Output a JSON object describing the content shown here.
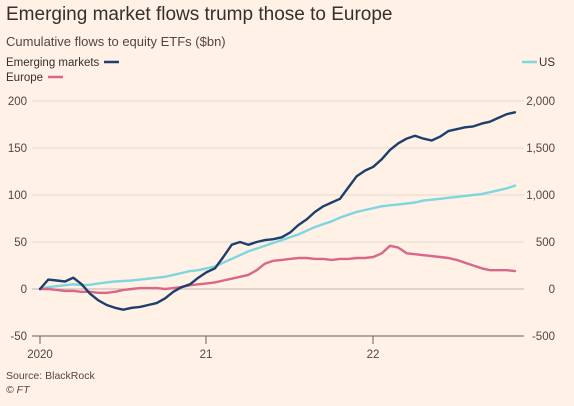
{
  "title": "Emerging market flows trump those to Europe",
  "subtitle": "Cumulative flows to equity ETFs ($bn)",
  "source": "Source: BlackRock",
  "credit": "© FT",
  "colors": {
    "background": "#fff1e5",
    "emerging": "#1e3f6e",
    "europe": "#d8678a",
    "us": "#7ed6df",
    "grid": "#e6d9ce",
    "zero": "#bfb3a9"
  },
  "chart_data": {
    "type": "line",
    "x_tick_labels": [
      "2020",
      "21",
      "22"
    ],
    "y_left": {
      "ticks": [
        200,
        150,
        100,
        50,
        0,
        -50
      ],
      "tick_labels": [
        "200",
        "150",
        "100",
        "50",
        "0",
        "-50"
      ],
      "ylim": [
        -50,
        200
      ]
    },
    "y_right": {
      "ticks": [
        2000,
        1500,
        1000,
        500,
        0,
        -500
      ],
      "tick_labels": [
        "2,000",
        "1,500",
        "1,000",
        "500",
        "0",
        "-500"
      ],
      "ylim": [
        -500,
        2000
      ]
    },
    "legend": {
      "emerging": "Emerging markets",
      "europe": "Europe",
      "us": "US"
    },
    "series": [
      {
        "name": "Emerging markets",
        "axis": "left",
        "x": [
          2020.0,
          2020.05,
          2020.1,
          2020.15,
          2020.2,
          2020.25,
          2020.3,
          2020.35,
          2020.4,
          2020.45,
          2020.5,
          2020.55,
          2020.6,
          2020.65,
          2020.7,
          2020.75,
          2020.8,
          2020.85,
          2020.9,
          2020.95,
          2021.0,
          2021.05,
          2021.1,
          2021.15,
          2021.2,
          2021.25,
          2021.3,
          2021.35,
          2021.4,
          2021.45,
          2021.5,
          2021.55,
          2021.6,
          2021.65,
          2021.7,
          2021.75,
          2021.8,
          2021.85,
          2021.9,
          2021.95,
          2022.0,
          2022.05,
          2022.1,
          2022.15,
          2022.2,
          2022.25,
          2022.3,
          2022.35,
          2022.4,
          2022.45,
          2022.5,
          2022.55,
          2022.6,
          2022.65,
          2022.7,
          2022.75,
          2022.8,
          2022.85
        ],
        "values": [
          0,
          10,
          9,
          8,
          12,
          5,
          -5,
          -12,
          -17,
          -20,
          -22,
          -20,
          -19,
          -17,
          -15,
          -10,
          -3,
          2,
          5,
          12,
          18,
          22,
          34,
          47,
          50,
          47,
          50,
          52,
          53,
          55,
          60,
          68,
          74,
          82,
          88,
          92,
          96,
          108,
          120,
          126,
          130,
          138,
          148,
          155,
          160,
          163,
          160,
          158,
          162,
          168,
          170,
          172,
          173,
          176,
          178,
          182,
          186,
          188
        ]
      },
      {
        "name": "Europe",
        "axis": "left",
        "x": [
          2020.0,
          2020.05,
          2020.1,
          2020.15,
          2020.2,
          2020.25,
          2020.3,
          2020.35,
          2020.4,
          2020.45,
          2020.5,
          2020.55,
          2020.6,
          2020.65,
          2020.7,
          2020.75,
          2020.8,
          2020.85,
          2020.9,
          2020.95,
          2021.0,
          2021.05,
          2021.1,
          2021.15,
          2021.2,
          2021.25,
          2021.3,
          2021.35,
          2021.4,
          2021.45,
          2021.5,
          2021.55,
          2021.6,
          2021.65,
          2021.7,
          2021.75,
          2021.8,
          2021.85,
          2021.9,
          2021.95,
          2022.0,
          2022.05,
          2022.1,
          2022.15,
          2022.2,
          2022.25,
          2022.3,
          2022.35,
          2022.4,
          2022.45,
          2022.5,
          2022.55,
          2022.6,
          2022.65,
          2022.7,
          2022.75,
          2022.8,
          2022.85
        ],
        "values": [
          0,
          0,
          -1,
          -2,
          -2,
          -3,
          -3,
          -4,
          -4,
          -3,
          -1,
          0,
          1,
          1,
          1,
          0,
          1,
          2,
          4,
          5,
          6,
          7,
          9,
          11,
          13,
          15,
          20,
          27,
          30,
          31,
          32,
          33,
          33,
          32,
          32,
          31,
          32,
          32,
          33,
          33,
          34,
          38,
          46,
          44,
          38,
          37,
          36,
          35,
          34,
          33,
          31,
          28,
          25,
          22,
          20,
          20,
          20,
          19
        ]
      },
      {
        "name": "US",
        "axis": "right",
        "x": [
          2020.0,
          2020.05,
          2020.1,
          2020.15,
          2020.2,
          2020.25,
          2020.3,
          2020.35,
          2020.4,
          2020.45,
          2020.5,
          2020.55,
          2020.6,
          2020.65,
          2020.7,
          2020.75,
          2020.8,
          2020.85,
          2020.9,
          2020.95,
          2021.0,
          2021.05,
          2021.1,
          2021.15,
          2021.2,
          2021.25,
          2021.3,
          2021.35,
          2021.4,
          2021.45,
          2021.5,
          2021.55,
          2021.6,
          2021.65,
          2021.7,
          2021.75,
          2021.8,
          2021.85,
          2021.9,
          2021.95,
          2022.0,
          2022.05,
          2022.1,
          2022.15,
          2022.2,
          2022.25,
          2022.3,
          2022.35,
          2022.4,
          2022.45,
          2022.5,
          2022.55,
          2022.6,
          2022.65,
          2022.7,
          2022.75,
          2022.8,
          2022.85
        ],
        "values": [
          0,
          20,
          30,
          40,
          50,
          40,
          45,
          60,
          70,
          80,
          85,
          90,
          100,
          110,
          120,
          130,
          150,
          170,
          190,
          200,
          220,
          240,
          280,
          320,
          360,
          400,
          430,
          460,
          490,
          520,
          550,
          580,
          620,
          660,
          690,
          720,
          760,
          790,
          820,
          840,
          860,
          880,
          890,
          900,
          910,
          920,
          940,
          950,
          960,
          970,
          980,
          990,
          1000,
          1010,
          1030,
          1050,
          1070,
          1100
        ]
      }
    ]
  }
}
